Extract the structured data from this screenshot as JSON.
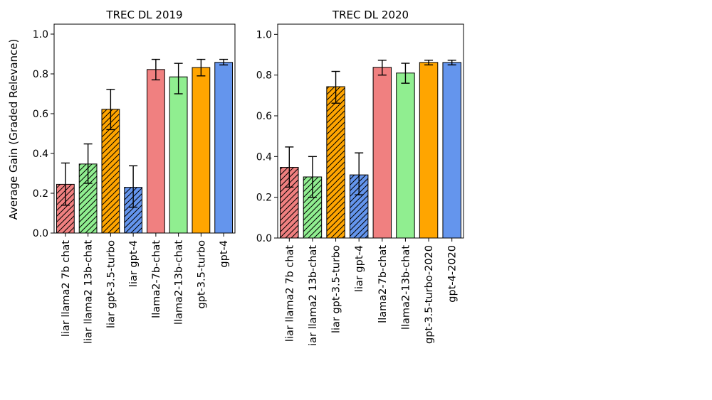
{
  "figure": {
    "ylabel": "Average Gain (Graded Relevance)"
  },
  "colors": {
    "red": "#f08080",
    "green": "#90ee90",
    "orange": "#ffa500",
    "blue": "#6495ed",
    "edge": "#000000"
  },
  "chart_data": [
    {
      "type": "bar",
      "title": "TREC DL 2019",
      "xlabel": "",
      "ylabel": "Average Gain (Graded Relevance)",
      "ylim": [
        0,
        1.05
      ],
      "yticks": [
        "0.0",
        "0.2",
        "0.4",
        "0.6",
        "0.8",
        "1.0"
      ],
      "grid": false,
      "categories": [
        "liar llama2 7b chat",
        "liar llama2 13b-chat",
        "liar gpt-3.5-turbo",
        "liar gpt-4",
        "llama2-7b-chat",
        "llama2-13b-chat",
        "gpt-3.5-turbo",
        "gpt-4"
      ],
      "values": [
        0.245,
        0.347,
        0.622,
        0.23,
        0.822,
        0.785,
        0.832,
        0.858
      ],
      "error_low": [
        0.14,
        0.25,
        0.52,
        0.13,
        0.77,
        0.7,
        0.79,
        0.845
      ],
      "error_high": [
        0.352,
        0.448,
        0.722,
        0.338,
        0.873,
        0.853,
        0.873,
        0.873
      ],
      "bar_colors": [
        "red",
        "green",
        "orange",
        "blue",
        "red",
        "green",
        "orange",
        "blue"
      ],
      "hatched": [
        true,
        true,
        true,
        true,
        false,
        false,
        false,
        false
      ]
    },
    {
      "type": "bar",
      "title": "TREC DL 2020",
      "xlabel": "",
      "ylabel": "",
      "ylim": [
        0,
        1.05
      ],
      "yticks": [
        "0.0",
        "0.2",
        "0.4",
        "0.6",
        "0.8",
        "1.0"
      ],
      "grid": false,
      "categories": [
        "liar llama2 7b chat",
        "iar llama2 13b-chat",
        "liar gpt-3.5-turbo",
        "liar gpt-4",
        "llama2-7b-chat",
        "llama2-13b-chat",
        "gpt-3.5-turbo-2020",
        "gpt-4-2020"
      ],
      "values": [
        0.347,
        0.3,
        0.743,
        0.31,
        0.838,
        0.81,
        0.862,
        0.862
      ],
      "error_low": [
        0.25,
        0.2,
        0.662,
        0.212,
        0.8,
        0.76,
        0.85,
        0.85
      ],
      "error_high": [
        0.447,
        0.4,
        0.818,
        0.418,
        0.873,
        0.858,
        0.873,
        0.873
      ],
      "bar_colors": [
        "red",
        "green",
        "orange",
        "blue",
        "red",
        "green",
        "orange",
        "blue"
      ],
      "hatched": [
        true,
        true,
        true,
        true,
        false,
        false,
        false,
        false
      ]
    }
  ]
}
